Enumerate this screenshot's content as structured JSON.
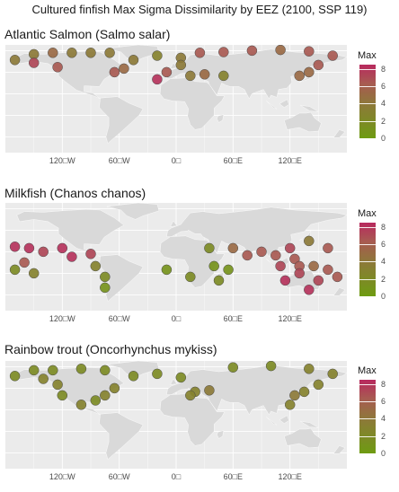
{
  "main_title": "Cultured finfish Max Sigma Dissimilarity by EEZ (2100, SSP 119)",
  "colors": {
    "panel_bg": "#ebebeb",
    "land": "#d9d9d9",
    "low": "#6e9b12",
    "mid": "#8c7a38",
    "high": "#b8295e"
  },
  "chart_data": [
    {
      "type": "map",
      "title": "Atlantic Salmon (Salmo salar)",
      "x_ticks": [
        "120□W",
        "60□W",
        "0□",
        "60□E",
        "120□E"
      ],
      "x_tick_values": [
        -120,
        -60,
        0,
        60,
        120
      ],
      "xlim": [
        -180,
        180
      ],
      "legend": {
        "title": "Max",
        "ticks": [
          0,
          2,
          4,
          6,
          8
        ],
        "range": [
          0,
          8.5
        ]
      },
      "regions": [
        {
          "lon": -170,
          "lat": 62,
          "value": 4
        },
        {
          "lon": -150,
          "lat": 70,
          "value": 4
        },
        {
          "lon": -130,
          "lat": 72,
          "value": 5
        },
        {
          "lon": -110,
          "lat": 72,
          "value": 4
        },
        {
          "lon": -90,
          "lat": 72,
          "value": 4
        },
        {
          "lon": -70,
          "lat": 72,
          "value": 4
        },
        {
          "lon": -150,
          "lat": 58,
          "value": 7
        },
        {
          "lon": -125,
          "lat": 52,
          "value": 6
        },
        {
          "lon": -65,
          "lat": 45,
          "value": 6
        },
        {
          "lon": -55,
          "lat": 50,
          "value": 5
        },
        {
          "lon": -45,
          "lat": 62,
          "value": 4
        },
        {
          "lon": -20,
          "lat": 68,
          "value": 3
        },
        {
          "lon": 5,
          "lat": 65,
          "value": 4
        },
        {
          "lon": 25,
          "lat": 72,
          "value": 6
        },
        {
          "lon": 50,
          "lat": 73,
          "value": 6
        },
        {
          "lon": 80,
          "lat": 75,
          "value": 6
        },
        {
          "lon": 110,
          "lat": 76,
          "value": 5
        },
        {
          "lon": 140,
          "lat": 74,
          "value": 6
        },
        {
          "lon": 165,
          "lat": 68,
          "value": 6
        },
        {
          "lon": 150,
          "lat": 55,
          "value": 6
        },
        {
          "lon": -20,
          "lat": 35,
          "value": 8
        },
        {
          "lon": -10,
          "lat": 45,
          "value": 6
        },
        {
          "lon": 5,
          "lat": 55,
          "value": 4
        },
        {
          "lon": 15,
          "lat": 40,
          "value": 4
        },
        {
          "lon": 30,
          "lat": 42,
          "value": 5
        },
        {
          "lon": 50,
          "lat": 40,
          "value": 3
        },
        {
          "lon": 130,
          "lat": 40,
          "value": 5
        },
        {
          "lon": 140,
          "lat": 45,
          "value": 5
        }
      ]
    },
    {
      "type": "map",
      "title": "Milkfish (Chanos chanos)",
      "x_ticks": [
        "120□W",
        "60□W",
        "0□",
        "60□E",
        "120□E"
      ],
      "x_tick_values": [
        -120,
        -60,
        0,
        60,
        120
      ],
      "xlim": [
        -180,
        180
      ],
      "legend": {
        "title": "Max",
        "ticks": [
          0,
          2,
          4,
          6,
          8
        ],
        "range": [
          0,
          8.5
        ]
      },
      "regions": [
        {
          "lon": -170,
          "lat": 22,
          "value": 8
        },
        {
          "lon": -155,
          "lat": 20,
          "value": 8
        },
        {
          "lon": -140,
          "lat": 15,
          "value": 7
        },
        {
          "lon": -120,
          "lat": 20,
          "value": 8
        },
        {
          "lon": -110,
          "lat": 8,
          "value": 8
        },
        {
          "lon": -90,
          "lat": 12,
          "value": 7
        },
        {
          "lon": -160,
          "lat": 0,
          "value": 6
        },
        {
          "lon": -150,
          "lat": -15,
          "value": 3
        },
        {
          "lon": -170,
          "lat": -10,
          "value": 2
        },
        {
          "lon": -85,
          "lat": -5,
          "value": 3
        },
        {
          "lon": -75,
          "lat": -20,
          "value": 2
        },
        {
          "lon": -75,
          "lat": -35,
          "value": 1
        },
        {
          "lon": -10,
          "lat": -10,
          "value": 1
        },
        {
          "lon": 15,
          "lat": -20,
          "value": 2
        },
        {
          "lon": 35,
          "lat": 20,
          "value": 2
        },
        {
          "lon": 40,
          "lat": -5,
          "value": 1
        },
        {
          "lon": 45,
          "lat": -25,
          "value": 2
        },
        {
          "lon": 55,
          "lat": -10,
          "value": 1
        },
        {
          "lon": 60,
          "lat": 20,
          "value": 5
        },
        {
          "lon": 75,
          "lat": 10,
          "value": 6
        },
        {
          "lon": 90,
          "lat": 15,
          "value": 6
        },
        {
          "lon": 105,
          "lat": 10,
          "value": 6
        },
        {
          "lon": 120,
          "lat": 20,
          "value": 7
        },
        {
          "lon": 125,
          "lat": 5,
          "value": 6
        },
        {
          "lon": 110,
          "lat": -5,
          "value": 7
        },
        {
          "lon": 130,
          "lat": -5,
          "value": 6
        },
        {
          "lon": 145,
          "lat": -5,
          "value": 5
        },
        {
          "lon": 160,
          "lat": -10,
          "value": 6
        },
        {
          "lon": 115,
          "lat": -25,
          "value": 8
        },
        {
          "lon": 130,
          "lat": -15,
          "value": 7
        },
        {
          "lon": 150,
          "lat": -25,
          "value": 7
        },
        {
          "lon": 140,
          "lat": -38,
          "value": 8
        },
        {
          "lon": 170,
          "lat": -20,
          "value": 6
        },
        {
          "lon": 160,
          "lat": 20,
          "value": 6
        },
        {
          "lon": 140,
          "lat": 30,
          "value": 4
        }
      ]
    },
    {
      "type": "map",
      "title": "Rainbow trout (Oncorhynchus mykiss)",
      "x_ticks": [
        "120□W",
        "60□W",
        "0□",
        "60□E",
        "120□E"
      ],
      "x_tick_values": [
        -120,
        -60,
        0,
        60,
        120
      ],
      "xlim": [
        -180,
        180
      ],
      "legend": {
        "title": "Max",
        "ticks": [
          0,
          2,
          4,
          6,
          8
        ],
        "range": [
          0,
          8.5
        ]
      },
      "regions": [
        {
          "lon": -170,
          "lat": 62,
          "value": 2
        },
        {
          "lon": -150,
          "lat": 70,
          "value": 2
        },
        {
          "lon": -130,
          "lat": 70,
          "value": 2
        },
        {
          "lon": -100,
          "lat": 72,
          "value": 2
        },
        {
          "lon": -75,
          "lat": 70,
          "value": 2
        },
        {
          "lon": -140,
          "lat": 58,
          "value": 3
        },
        {
          "lon": -125,
          "lat": 50,
          "value": 3
        },
        {
          "lon": -120,
          "lat": 35,
          "value": 2
        },
        {
          "lon": -100,
          "lat": 22,
          "value": 3
        },
        {
          "lon": -85,
          "lat": 28,
          "value": 2
        },
        {
          "lon": -75,
          "lat": 35,
          "value": 3
        },
        {
          "lon": -65,
          "lat": 45,
          "value": 3
        },
        {
          "lon": -45,
          "lat": 62,
          "value": 2
        },
        {
          "lon": -20,
          "lat": 65,
          "value": 2
        },
        {
          "lon": 5,
          "lat": 60,
          "value": 2
        },
        {
          "lon": 20,
          "lat": 40,
          "value": 3
        },
        {
          "lon": 35,
          "lat": 42,
          "value": 4
        },
        {
          "lon": 15,
          "lat": 35,
          "value": 3
        },
        {
          "lon": 60,
          "lat": 74,
          "value": 2
        },
        {
          "lon": 100,
          "lat": 76,
          "value": 2
        },
        {
          "lon": 140,
          "lat": 72,
          "value": 3
        },
        {
          "lon": 165,
          "lat": 65,
          "value": 3
        },
        {
          "lon": 150,
          "lat": 50,
          "value": 3
        },
        {
          "lon": 125,
          "lat": 35,
          "value": 4
        },
        {
          "lon": 135,
          "lat": 40,
          "value": 3
        },
        {
          "lon": 120,
          "lat": 22,
          "value": 3
        }
      ]
    }
  ]
}
